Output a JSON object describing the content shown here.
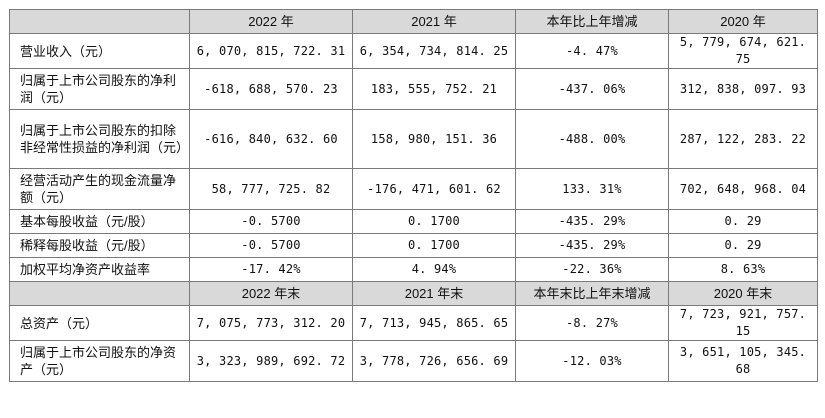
{
  "header1": [
    "",
    "2022 年",
    "2021 年",
    "本年比上年增减",
    "2020 年"
  ],
  "rows1": [
    {
      "label": "营业收入（元）",
      "values": [
        "6, 070, 815, 722. 31",
        "6, 354, 734, 814. 25",
        "-4. 47%",
        "5, 779, 674, 621. 75"
      ]
    },
    {
      "label": "归属于上市公司股东的净利润（元）",
      "values": [
        "-618, 688, 570. 23",
        "183, 555, 752. 21",
        "-437. 06%",
        "312, 838, 097. 93"
      ]
    },
    {
      "label": "归属于上市公司股东的扣除非经常性损益的净利润（元）",
      "values": [
        "-616, 840, 632. 60",
        "158, 980, 151. 36",
        "-488. 00%",
        "287, 122, 283. 22"
      ]
    },
    {
      "label": "经营活动产生的现金流量净额（元）",
      "values": [
        "58, 777, 725. 82",
        "-176, 471, 601. 62",
        "133. 31%",
        "702, 648, 968. 04"
      ]
    },
    {
      "label": "基本每股收益（元/股）",
      "values": [
        "-0. 5700",
        "0. 1700",
        "-435. 29%",
        "0. 29"
      ]
    },
    {
      "label": "稀释每股收益（元/股）",
      "values": [
        "-0. 5700",
        "0. 1700",
        "-435. 29%",
        "0. 29"
      ]
    },
    {
      "label": "加权平均净资产收益率",
      "values": [
        "-17. 42%",
        "4. 94%",
        "-22. 36%",
        "8. 63%"
      ]
    }
  ],
  "header2": [
    "",
    "2022 年末",
    "2021 年末",
    "本年末比上年末增减",
    "2020 年末"
  ],
  "rows2": [
    {
      "label": "总资产（元）",
      "values": [
        "7, 075, 773, 312. 20",
        "7, 713, 945, 865. 65",
        "-8. 27%",
        "7, 723, 921, 757. 15"
      ]
    },
    {
      "label": "归属于上市公司股东的净资产（元）",
      "values": [
        "3, 323, 989, 692. 72",
        "3, 778, 726, 656. 69",
        "-12. 03%",
        "3, 651, 105, 345. 68"
      ]
    }
  ]
}
